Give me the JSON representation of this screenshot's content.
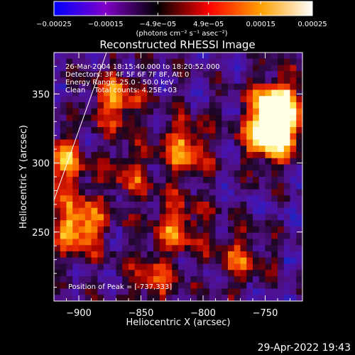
{
  "chart_data": {
    "type": "heatmap",
    "title": "Reconstructed RHESSI Image",
    "xlabel": "Heliocentric X (arcsec)",
    "ylabel": "Heliocentric Y (arcsec)",
    "x_range": [
      -920,
      -720
    ],
    "y_range": [
      200,
      380
    ],
    "x_ticks": [
      -900,
      -850,
      -800,
      -750
    ],
    "x_tick_labels": [
      "−900",
      "−850",
      "−800",
      "−750"
    ],
    "y_ticks": [
      250,
      300,
      350
    ],
    "y_tick_labels": [
      "250",
      "300",
      "350"
    ],
    "colorbar": {
      "min": -0.00025,
      "max": 0.00025,
      "ticks": [
        -0.00025,
        -0.00015,
        -4.9e-05,
        4.9e-05,
        0.00015,
        0.00025
      ],
      "tick_labels": [
        "−0.00025",
        "−0.00015",
        "−4.9e−05",
        "4.9e−05",
        "0.00015",
        "0.00025"
      ],
      "units_label": "(photons cm⁻² s⁻¹ asec⁻²)",
      "colors": [
        "#0000ff",
        "#8000c8",
        "#000000",
        "#ff0000",
        "#ffa000",
        "#ffffff"
      ]
    },
    "annotations": [
      "26-Mar-2004 18:15:40.000 to 18:20:52.000",
      "Detectors: 3F 4F 5F 6F 7F 8F, Att 0",
      "Energy Range: 25.0 - 50.0 keV",
      "Clean    Total counts: 4.25E+03"
    ],
    "peak_label": "Position of Peak = [-737,333]",
    "peak_position": [
      -737,
      333
    ],
    "grid": false,
    "bright_regions": [
      {
        "x": -745,
        "y": 320,
        "level": 0.95
      },
      {
        "x": -740,
        "y": 340,
        "level": 1.0
      },
      {
        "x": -900,
        "y": 255,
        "level": 0.8
      },
      {
        "x": -915,
        "y": 300,
        "level": 0.6
      },
      {
        "x": -870,
        "y": 345,
        "level": 0.6
      },
      {
        "x": -815,
        "y": 310,
        "level": 0.6
      },
      {
        "x": -820,
        "y": 255,
        "level": 0.5
      },
      {
        "x": -770,
        "y": 230,
        "level": 0.4
      },
      {
        "x": -840,
        "y": 215,
        "level": 0.45
      },
      {
        "x": -860,
        "y": 290,
        "level": 0.35
      }
    ]
  },
  "footer": {
    "date_time": "29-Apr-2022 19:43"
  }
}
